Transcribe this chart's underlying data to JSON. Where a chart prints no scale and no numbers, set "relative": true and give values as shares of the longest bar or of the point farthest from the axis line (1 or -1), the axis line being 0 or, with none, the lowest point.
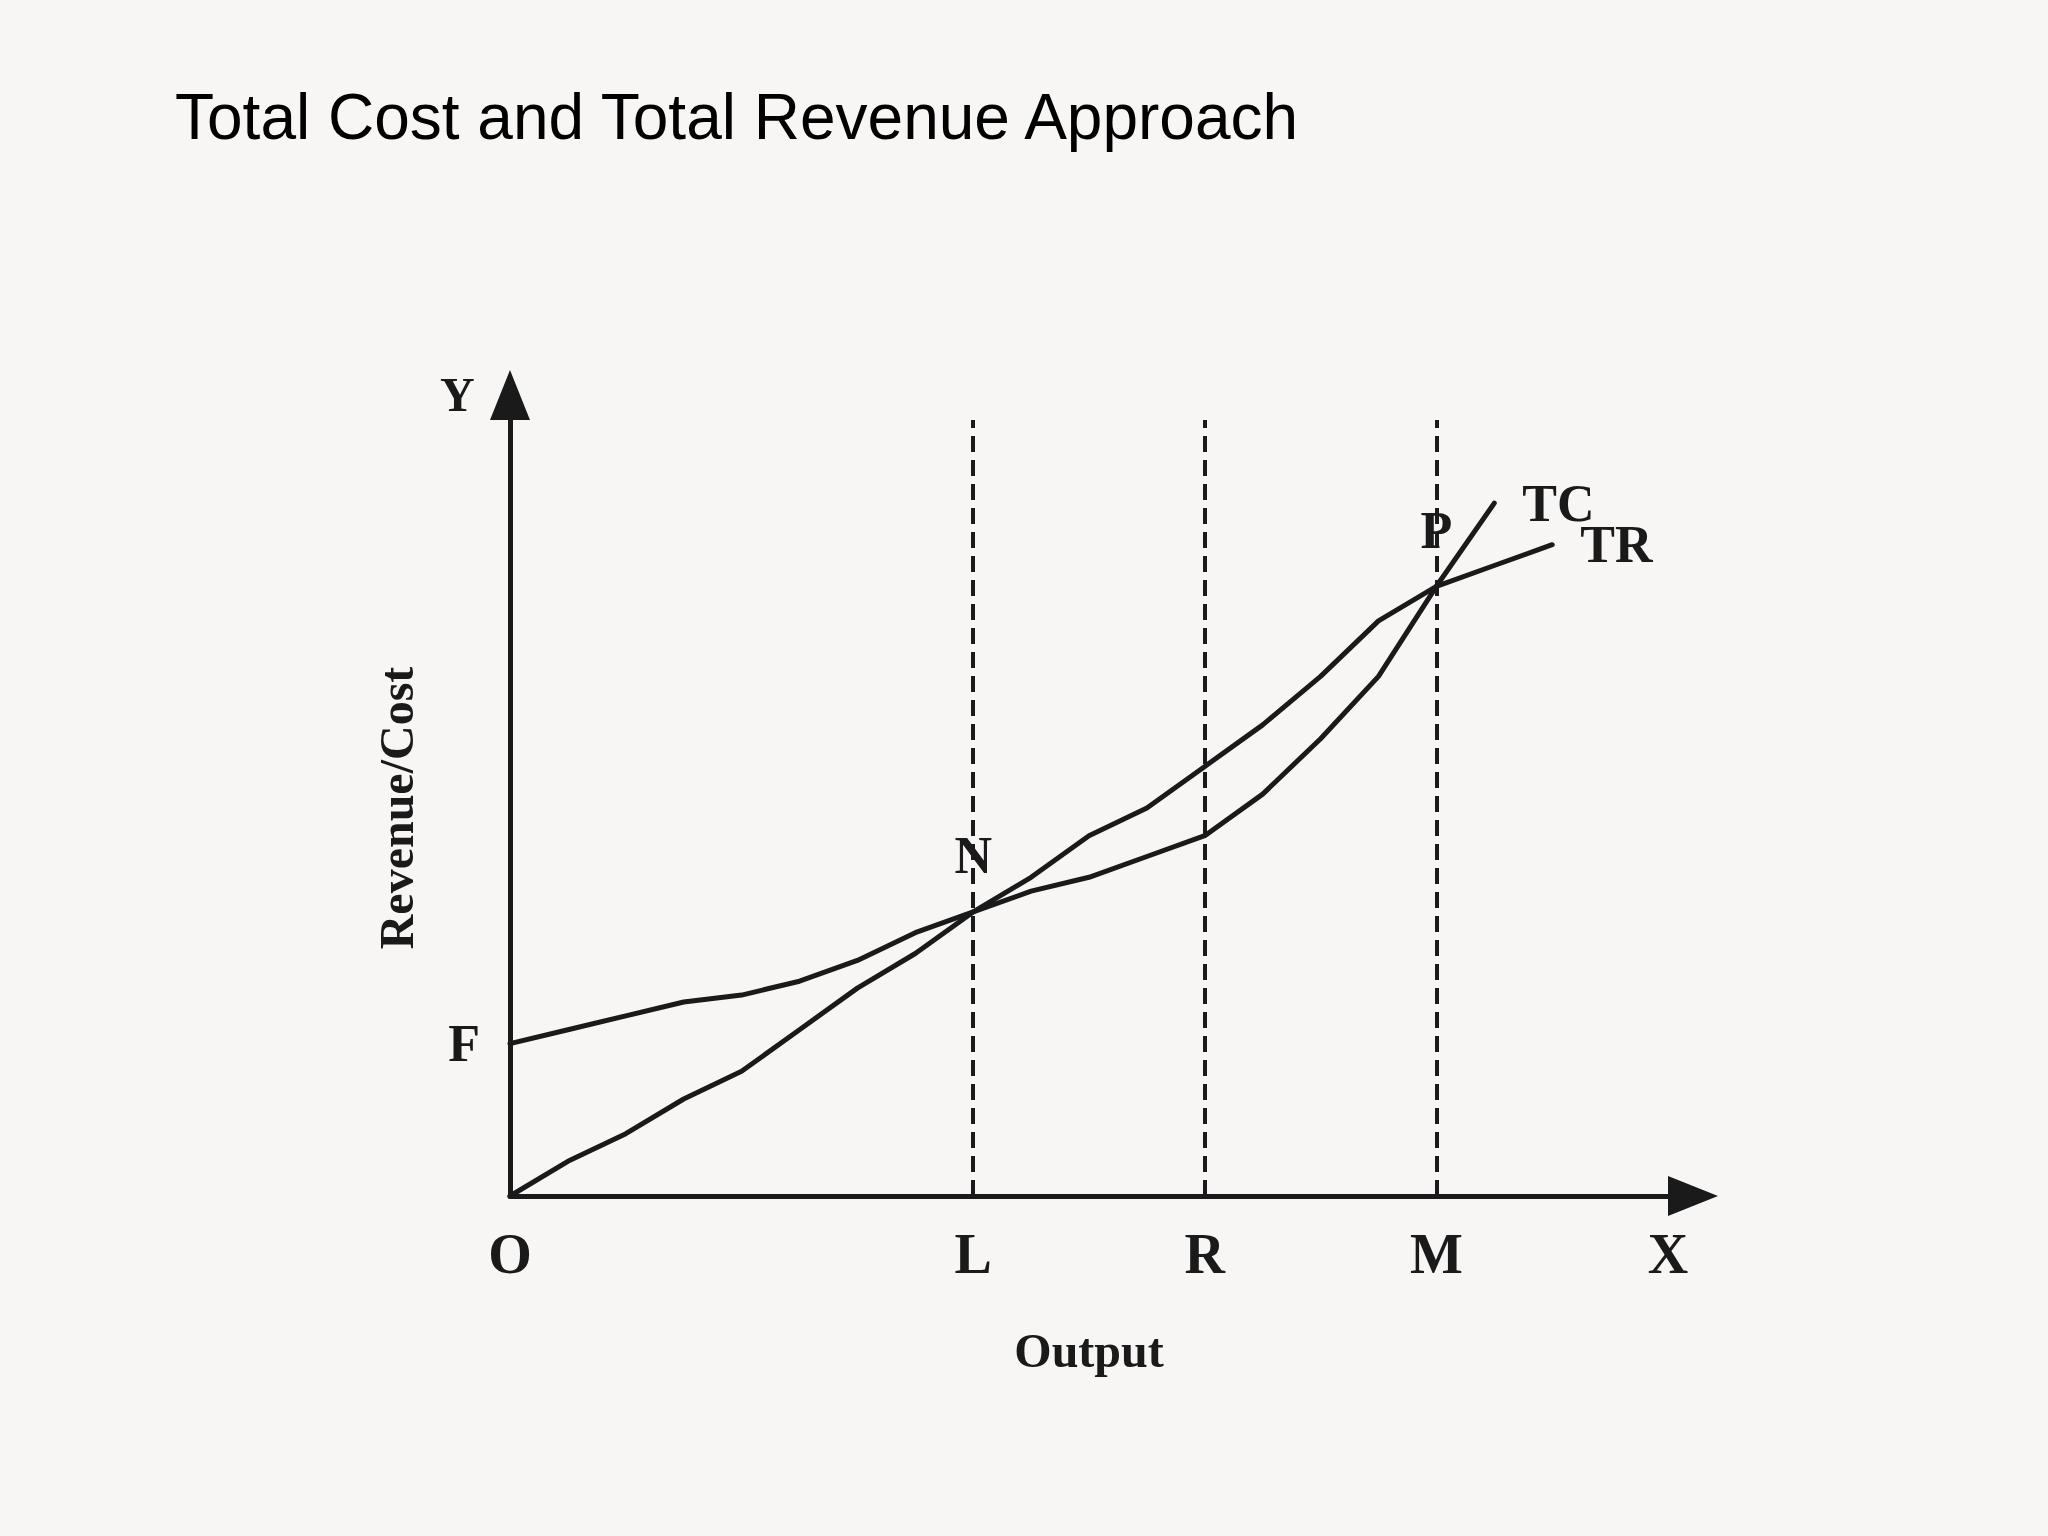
{
  "chart_data": {
    "type": "line",
    "title": "Total Cost and Total Revenue Approach",
    "xlabel": "Output",
    "ylabel": "Revenue/Cost",
    "relative": true,
    "categories": [
      "O",
      null,
      null,
      null,
      null,
      null,
      null,
      null,
      "L",
      null,
      null,
      null,
      "R",
      null,
      null,
      null,
      "M",
      null,
      null,
      null,
      "X"
    ],
    "series": [
      {
        "name": "TC",
        "color": "#1a1a1a",
        "values": [
          0.22,
          0.24,
          0.26,
          0.28,
          0.29,
          0.31,
          0.34,
          0.38,
          0.41,
          0.44,
          0.46,
          0.49,
          0.52,
          0.58,
          0.66,
          0.75,
          0.88,
          1,
          null,
          null,
          null
        ]
      },
      {
        "name": "TR",
        "color": "#1a1a1a",
        "values": [
          0,
          0.05,
          0.09,
          0.14,
          0.18,
          0.24,
          0.3,
          0.35,
          0.41,
          0.46,
          0.52,
          0.56,
          0.62,
          0.68,
          0.75,
          0.83,
          0.88,
          0.91,
          0.94,
          null,
          null
        ]
      }
    ],
    "ref_lines": [
      {
        "axis": "x",
        "value": "L",
        "line_style": "dashed"
      },
      {
        "axis": "x",
        "value": "R",
        "line_style": "dashed"
      },
      {
        "axis": "x",
        "value": "M",
        "line_style": "dashed"
      }
    ],
    "annotations": [
      "Y",
      {
        "text": "F",
        "x": "O",
        "y": 0.22
      },
      {
        "text": "N",
        "x": "L",
        "y": 0.41
      },
      {
        "text": "P",
        "x": "M",
        "y": 0.88
      }
    ],
    "grid": false,
    "legend": false,
    "marker": "none",
    "line_style": "solid"
  }
}
